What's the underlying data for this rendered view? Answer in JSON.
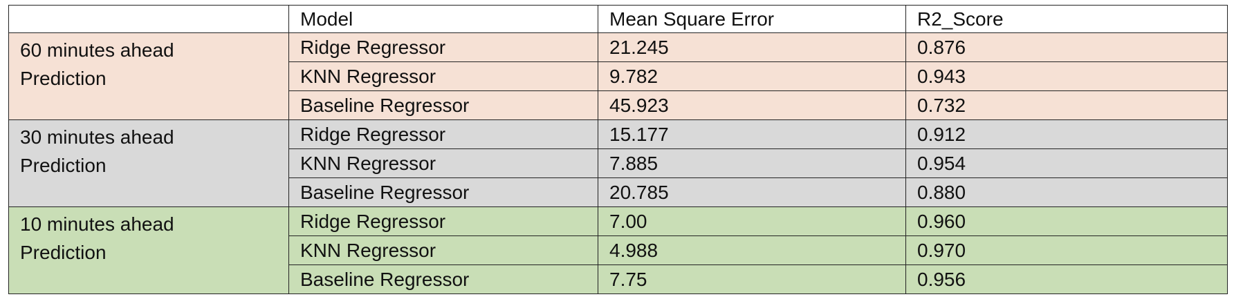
{
  "table": {
    "headers": [
      "",
      "Model",
      "Mean Square Error",
      "R2_Score"
    ],
    "groups": [
      {
        "label_lines": [
          "60 minutes ahead",
          "Prediction"
        ],
        "color": "#f6e1d5",
        "rows": [
          {
            "model": "Ridge Regressor",
            "mse": "21.245",
            "r2": "0.876"
          },
          {
            "model": "KNN Regressor",
            "mse": "9.782",
            "r2": "0.943"
          },
          {
            "model": "Baseline Regressor",
            "mse": "45.923",
            "r2": "0.732"
          }
        ]
      },
      {
        "label_lines": [
          "30 minutes ahead",
          "Prediction"
        ],
        "color": "#d9d9d9",
        "rows": [
          {
            "model": "Ridge Regressor",
            "mse": "15.177",
            "r2": "0.912"
          },
          {
            "model": "KNN Regressor",
            "mse": "7.885",
            "r2": "0.954"
          },
          {
            "model": "Baseline Regressor",
            "mse": "20.785",
            "r2": "0.880"
          }
        ]
      },
      {
        "label_lines": [
          "10 minutes ahead",
          "Prediction"
        ],
        "color": "#c9deb6",
        "rows": [
          {
            "model": "Ridge Regressor",
            "mse": "7.00",
            "r2": "0.960"
          },
          {
            "model": "KNN Regressor",
            "mse": "4.988",
            "r2": "0.970"
          },
          {
            "model": "Baseline Regressor",
            "mse": "7.75",
            "r2": "0.956"
          }
        ]
      }
    ]
  }
}
